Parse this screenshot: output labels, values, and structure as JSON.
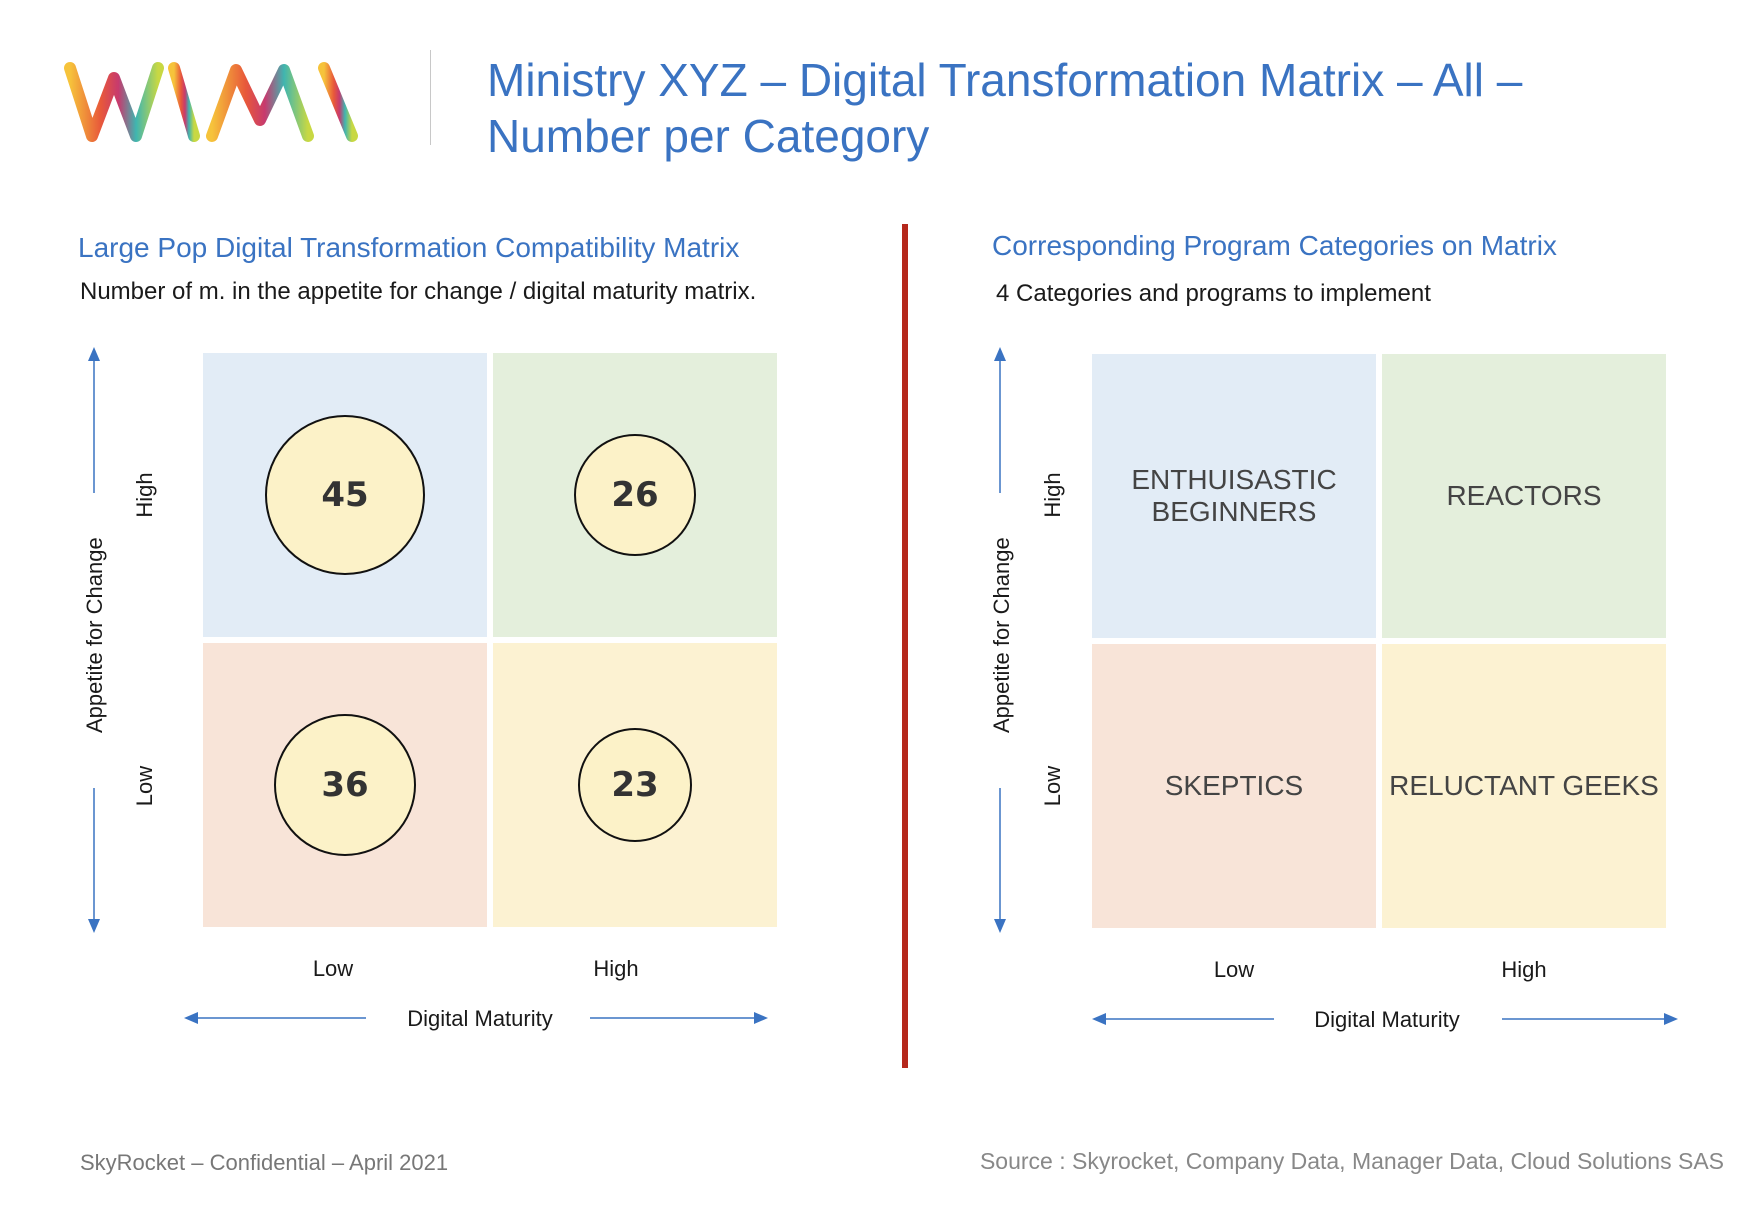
{
  "header": {
    "logo_text": "WIMI",
    "title_line1": "Ministry XYZ – Digital Transformation Matrix – All –",
    "title_line2": "Number per Category"
  },
  "left_panel": {
    "title": "Large Pop Digital Transformation Compatibility Matrix",
    "subtitle": "Number of m. in the appetite for change / digital maturity matrix.",
    "y_axis_label": "Appetite for Change",
    "y_high": "High",
    "y_low": "Low",
    "x_axis_label": "Digital Maturity",
    "x_low": "Low",
    "x_high": "High",
    "quadrants": {
      "high_low": {
        "value": "45"
      },
      "high_high": {
        "value": "26"
      },
      "low_low": {
        "value": "36"
      },
      "low_high": {
        "value": "23"
      }
    }
  },
  "right_panel": {
    "title": "Corresponding Program Categories on Matrix",
    "subtitle": "4 Categories and programs to implement",
    "y_axis_label": "Appetite for Change",
    "y_high": "High",
    "y_low": "Low",
    "x_axis_label": "Digital Maturity",
    "x_low": "Low",
    "x_high": "High",
    "categories": {
      "high_low_line1": "ENTHUISASTIC",
      "high_low_line2": "BEGINNERS",
      "high_high": "REACTORS",
      "low_low": "SKEPTICS",
      "low_high": "RELUCTANT GEEKS"
    }
  },
  "footer": {
    "left": "SkyRocket – Confidential – April 2021",
    "right": "Source : Skyrocket, Company Data, Manager Data, Cloud Solutions SAS"
  },
  "colors": {
    "accent_blue": "#3a73c2",
    "divider_red": "#b5281c",
    "quad_blue": "#e2ecf6",
    "quad_green": "#e4efdc",
    "quad_pink": "#f8e4d8",
    "quad_yellow": "#fcf2d2"
  }
}
